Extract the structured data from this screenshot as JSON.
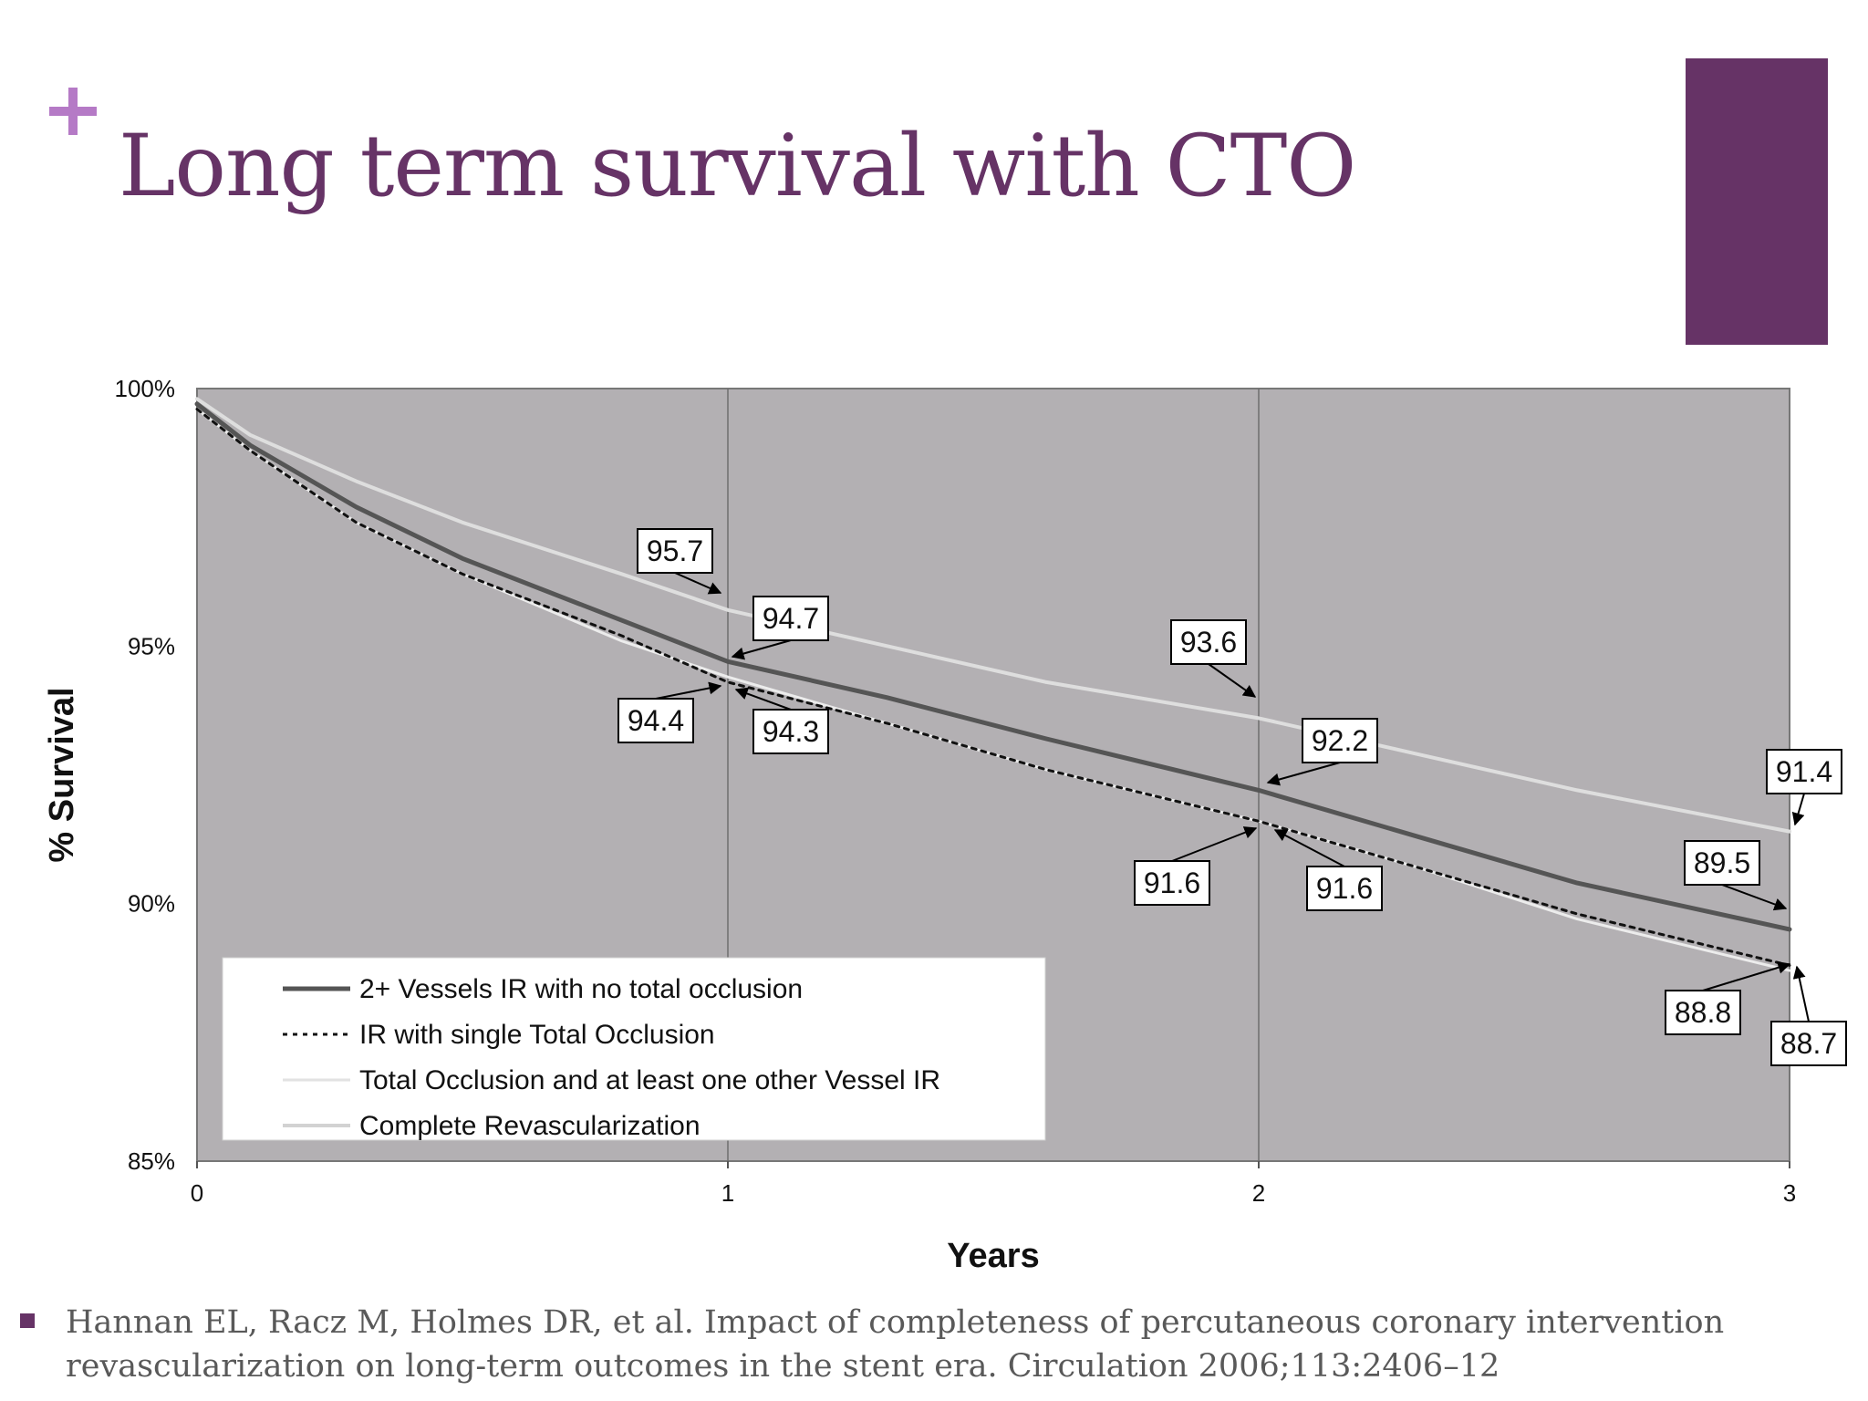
{
  "slide": {
    "title": "Long term survival with CTO",
    "citation": "Hannan EL, Racz M, Holmes DR, et al. Impact of completeness of percutaneous coronary intervention revascularization on long-term outcomes in the stent era. Circulation 2006;113:2406–12"
  },
  "colors": {
    "title": "#663366",
    "plus_icon": "#b57ac6",
    "accent_bar": "#663366",
    "plot_background": "#b3b0b3"
  },
  "chart_data": {
    "type": "line",
    "xlabel": "Years",
    "ylabel": "% Survival",
    "xlim": [
      0,
      3
    ],
    "ylim": [
      85,
      100
    ],
    "x_ticks": [
      "0",
      "1",
      "2",
      "3"
    ],
    "y_ticks": [
      "85%",
      "90%",
      "95%",
      "100%"
    ],
    "grid": "vertical lines at years 1 and 2",
    "legend_placement": "bottom-left",
    "series": [
      {
        "name": "2+ Vessels IR with no total occlusion",
        "style": "solid-dark",
        "color": "#555555",
        "points": [
          [
            0,
            99.7
          ],
          [
            0.1,
            98.9
          ],
          [
            0.3,
            97.7
          ],
          [
            0.5,
            96.7
          ],
          [
            0.8,
            95.5
          ],
          [
            1,
            94.7
          ],
          [
            1.3,
            94.0
          ],
          [
            1.6,
            93.2
          ],
          [
            2,
            92.2
          ],
          [
            2.3,
            91.3
          ],
          [
            2.6,
            90.4
          ],
          [
            3,
            89.5
          ]
        ]
      },
      {
        "name": "IR with single Total Occlusion",
        "style": "dotted",
        "color": "#111111",
        "points": [
          [
            0,
            99.6
          ],
          [
            0.1,
            98.8
          ],
          [
            0.3,
            97.4
          ],
          [
            0.5,
            96.4
          ],
          [
            0.8,
            95.2
          ],
          [
            1,
            94.3
          ],
          [
            1.3,
            93.5
          ],
          [
            1.6,
            92.6
          ],
          [
            2,
            91.6
          ],
          [
            2.3,
            90.7
          ],
          [
            2.6,
            89.8
          ],
          [
            3,
            88.8
          ]
        ]
      },
      {
        "name": "Total Occlusion and at least one other Vessel IR",
        "style": "solid-light",
        "color": "#ececec",
        "points": [
          [
            0,
            99.6
          ],
          [
            0.1,
            98.8
          ],
          [
            0.3,
            97.4
          ],
          [
            0.5,
            96.4
          ],
          [
            0.8,
            95.1
          ],
          [
            1,
            94.4
          ],
          [
            1.3,
            93.5
          ],
          [
            1.6,
            92.6
          ],
          [
            2,
            91.6
          ],
          [
            2.3,
            90.7
          ],
          [
            2.6,
            89.7
          ],
          [
            3,
            88.7
          ]
        ]
      },
      {
        "name": "Complete Revascularization",
        "style": "solid-lighter",
        "color": "#dedede",
        "points": [
          [
            0,
            99.8
          ],
          [
            0.1,
            99.1
          ],
          [
            0.3,
            98.2
          ],
          [
            0.5,
            97.4
          ],
          [
            0.8,
            96.4
          ],
          [
            1,
            95.7
          ],
          [
            1.3,
            95.0
          ],
          [
            1.6,
            94.3
          ],
          [
            2,
            93.6
          ],
          [
            2.3,
            92.9
          ],
          [
            2.6,
            92.2
          ],
          [
            3,
            91.4
          ]
        ]
      }
    ],
    "annotations": [
      {
        "text": "95.7",
        "x": 1,
        "y": 95.7
      },
      {
        "text": "94.7",
        "x": 1,
        "y": 94.7
      },
      {
        "text": "94.4",
        "x": 1,
        "y": 94.3
      },
      {
        "text": "94.3",
        "x": 1,
        "y": 94.3
      },
      {
        "text": "93.6",
        "x": 2,
        "y": 93.6
      },
      {
        "text": "92.2",
        "x": 2,
        "y": 92.2
      },
      {
        "text": "91.6",
        "x": 2,
        "y": 91.6
      },
      {
        "text": "91.6",
        "x": 2,
        "y": 91.6
      },
      {
        "text": "91.4",
        "x": 3,
        "y": 91.4
      },
      {
        "text": "89.5",
        "x": 3,
        "y": 89.5
      },
      {
        "text": "88.8",
        "x": 3,
        "y": 88.8
      },
      {
        "text": "88.7",
        "x": 3,
        "y": 88.7
      }
    ]
  }
}
